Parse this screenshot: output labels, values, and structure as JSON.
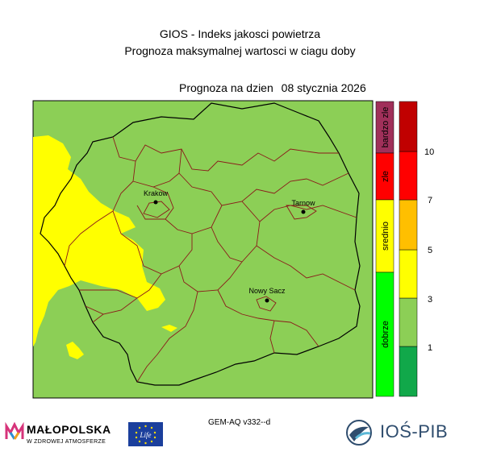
{
  "header": {
    "title_line1": "GIOS - Indeks jakosci powietrza",
    "title_line2": "Prognoza maksymalnej wartosci w ciagu doby",
    "forecast_label": "Prognoza na dzien",
    "forecast_date": "08 stycznia 2026"
  },
  "categories": [
    {
      "label": "dobrze",
      "color": "#00ff00"
    },
    {
      "label": "srednio",
      "color": "#ffff00"
    },
    {
      "label": "zle",
      "color": "#ff0000"
    },
    {
      "label": "bardzo zle",
      "color": "#a0305a"
    }
  ],
  "scale": {
    "labels": [
      "1",
      "3",
      "5",
      "7",
      "10"
    ],
    "colors": [
      "#11a84a",
      "#8ccf56",
      "#ffff00",
      "#ffbf00",
      "#ff0000",
      "#c00000"
    ]
  },
  "map_colors": {
    "good": "#8ccf56",
    "moderate": "#ffff00",
    "boundary": "#000000",
    "district_boundary": "#8b1a1a"
  },
  "cities": [
    {
      "name": "Krakow"
    },
    {
      "name": "Tarnow"
    },
    {
      "name": "Nowy Sacz"
    }
  ],
  "footer": {
    "model": "GEM-AQ v332--d",
    "malopolska_name": "MAŁOPOLSKA",
    "malopolska_slogan": "W ZDROWEJ ATMOSFERZE",
    "eu_label": "Life",
    "ios_label": "IOŚ-PIB"
  }
}
